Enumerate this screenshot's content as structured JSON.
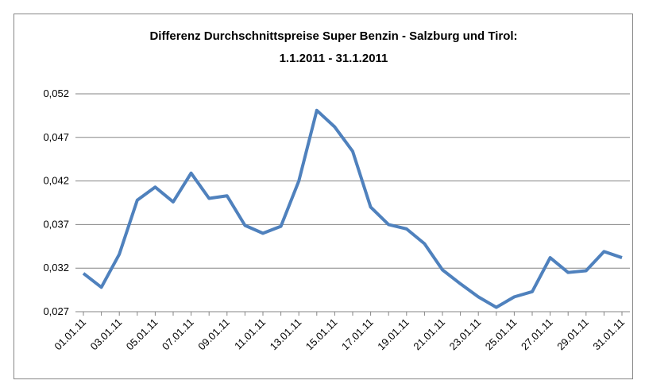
{
  "chart_data": {
    "type": "line",
    "title": [
      "Differenz Durchschnittspreise  Super Benzin - Salzburg  und Tirol:",
      "1.1.2011 - 31.1.2011"
    ],
    "categories": [
      "01.01.11",
      null,
      "03.01.11",
      null,
      "05.01.11",
      null,
      "07.01.11",
      null,
      "09.01.11",
      null,
      "11.01.11",
      null,
      "13.01.11",
      null,
      "15.01.11",
      null,
      "17.01.11",
      null,
      "19.01.11",
      null,
      "21.01.11",
      null,
      "23.01.11",
      null,
      "25.01.11",
      null,
      "27.01.11",
      null,
      "29.01.11",
      null,
      "31.01.11"
    ],
    "series": [
      {
        "name": "Differenz",
        "color": "#4f81bd",
        "values": [
          0.0314,
          0.0298,
          0.0336,
          0.0398,
          0.0413,
          0.0396,
          0.0429,
          0.04,
          0.0403,
          0.0369,
          0.036,
          0.0368,
          0.042,
          0.0501,
          0.0482,
          0.0454,
          0.039,
          0.037,
          0.0365,
          0.0348,
          0.0318,
          0.0302,
          0.0287,
          0.0275,
          0.0287,
          0.0293,
          0.0332,
          0.0315,
          0.0317,
          0.0339,
          0.0332
        ]
      }
    ],
    "ylim": [
      0.027,
      0.052
    ],
    "yticks": [
      {
        "value": 0.027,
        "label": "0,027"
      },
      {
        "value": 0.032,
        "label": "0,032"
      },
      {
        "value": 0.037,
        "label": "0,037"
      },
      {
        "value": 0.042,
        "label": "0,042"
      },
      {
        "value": 0.047,
        "label": "0,047"
      },
      {
        "value": 0.052,
        "label": "0,052"
      }
    ],
    "grid": true
  }
}
